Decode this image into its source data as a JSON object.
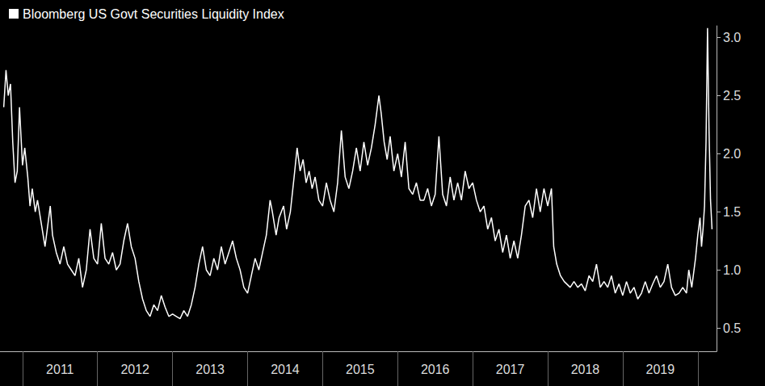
{
  "chart_data": {
    "type": "line",
    "legend": "top-left",
    "grid": false,
    "xlim": [
      2010.7,
      2020.25
    ],
    "xticks": [
      {
        "value": 2011.5,
        "label": "2011"
      },
      {
        "value": 2012.5,
        "label": "2012"
      },
      {
        "value": 2013.5,
        "label": "2013"
      },
      {
        "value": 2014.5,
        "label": "2014"
      },
      {
        "value": 2015.5,
        "label": "2015"
      },
      {
        "value": 2016.5,
        "label": "2016"
      },
      {
        "value": 2017.5,
        "label": "2017"
      },
      {
        "value": 2018.5,
        "label": "2018"
      },
      {
        "value": 2019.5,
        "label": "2019"
      }
    ],
    "ylim": [
      0.3,
      3.1
    ],
    "yticks": [
      0.5,
      {
        "value": 1.0,
        "label": "1.0"
      },
      1.5,
      {
        "value": 2.0,
        "label": "2.0"
      },
      2.5,
      {
        "value": 3.0,
        "label": "3.0"
      }
    ],
    "series": [
      {
        "name": "Bloomberg US Govt Securities Liquidity Index",
        "color": "#ffffff",
        "x": [
          2010.75,
          2010.78,
          2010.81,
          2010.84,
          2010.87,
          2010.9,
          2010.93,
          2010.96,
          2011.0,
          2011.03,
          2011.07,
          2011.1,
          2011.13,
          2011.17,
          2011.2,
          2011.25,
          2011.3,
          2011.33,
          2011.37,
          2011.4,
          2011.45,
          2011.5,
          2011.55,
          2011.6,
          2011.65,
          2011.7,
          2011.75,
          2011.8,
          2011.85,
          2011.9,
          2011.95,
          2012.0,
          2012.05,
          2012.1,
          2012.15,
          2012.2,
          2012.25,
          2012.3,
          2012.35,
          2012.4,
          2012.45,
          2012.5,
          2012.55,
          2012.6,
          2012.65,
          2012.7,
          2012.75,
          2012.8,
          2012.85,
          2012.9,
          2012.95,
          2013.0,
          2013.05,
          2013.1,
          2013.15,
          2013.2,
          2013.25,
          2013.3,
          2013.35,
          2013.4,
          2013.45,
          2013.5,
          2013.55,
          2013.6,
          2013.65,
          2013.7,
          2013.75,
          2013.8,
          2013.85,
          2013.9,
          2013.95,
          2014.0,
          2014.05,
          2014.1,
          2014.15,
          2014.2,
          2014.25,
          2014.3,
          2014.33,
          2014.38,
          2014.42,
          2014.48,
          2014.52,
          2014.57,
          2014.62,
          2014.66,
          2014.7,
          2014.74,
          2014.78,
          2014.82,
          2014.86,
          2014.9,
          2014.95,
          2015.0,
          2015.05,
          2015.1,
          2015.15,
          2015.2,
          2015.25,
          2015.3,
          2015.35,
          2015.4,
          2015.45,
          2015.5,
          2015.55,
          2015.6,
          2015.65,
          2015.7,
          2015.75,
          2015.78,
          2015.82,
          2015.86,
          2015.9,
          2015.95,
          2016.0,
          2016.05,
          2016.1,
          2016.15,
          2016.2,
          2016.25,
          2016.3,
          2016.35,
          2016.4,
          2016.45,
          2016.5,
          2016.55,
          2016.6,
          2016.65,
          2016.7,
          2016.75,
          2016.8,
          2016.85,
          2016.9,
          2016.95,
          2017.0,
          2017.05,
          2017.1,
          2017.15,
          2017.2,
          2017.25,
          2017.3,
          2017.35,
          2017.4,
          2017.45,
          2017.5,
          2017.55,
          2017.6,
          2017.65,
          2017.7,
          2017.75,
          2017.8,
          2017.85,
          2017.9,
          2017.95,
          2018.0,
          2018.05,
          2018.08,
          2018.12,
          2018.17,
          2018.22,
          2018.3,
          2018.35,
          2018.4,
          2018.45,
          2018.5,
          2018.55,
          2018.6,
          2018.65,
          2018.7,
          2018.75,
          2018.8,
          2018.85,
          2018.9,
          2018.95,
          2019.0,
          2019.05,
          2019.1,
          2019.15,
          2019.2,
          2019.25,
          2019.3,
          2019.35,
          2019.4,
          2019.45,
          2019.5,
          2019.55,
          2019.6,
          2019.65,
          2019.7,
          2019.75,
          2019.8,
          2019.85,
          2019.88,
          2019.92,
          2019.97,
          2020.0,
          2020.03,
          2020.05,
          2020.07,
          2020.09,
          2020.11,
          2020.13,
          2020.15,
          2020.17,
          2020.19
        ],
        "values": [
          2.4,
          2.72,
          2.5,
          2.6,
          2.1,
          1.75,
          1.85,
          2.4,
          1.9,
          2.05,
          1.8,
          1.55,
          1.7,
          1.5,
          1.6,
          1.4,
          1.2,
          1.35,
          1.55,
          1.3,
          1.15,
          1.05,
          1.2,
          1.05,
          1.0,
          0.95,
          1.1,
          0.85,
          1.0,
          1.35,
          1.1,
          1.05,
          1.4,
          1.1,
          1.05,
          1.15,
          1.0,
          1.05,
          1.25,
          1.4,
          1.2,
          1.1,
          0.9,
          0.75,
          0.65,
          0.6,
          0.7,
          0.65,
          0.78,
          0.68,
          0.6,
          0.62,
          0.6,
          0.58,
          0.65,
          0.6,
          0.7,
          0.85,
          1.05,
          1.2,
          1.0,
          0.95,
          1.1,
          1.0,
          1.2,
          1.05,
          1.15,
          1.25,
          1.1,
          1.0,
          0.85,
          0.8,
          0.95,
          1.1,
          1.0,
          1.15,
          1.3,
          1.6,
          1.5,
          1.3,
          1.45,
          1.55,
          1.35,
          1.5,
          1.8,
          2.05,
          1.85,
          1.95,
          1.75,
          1.85,
          1.7,
          1.8,
          1.6,
          1.55,
          1.75,
          1.6,
          1.5,
          1.75,
          2.2,
          1.8,
          1.7,
          1.85,
          2.05,
          1.85,
          2.1,
          1.9,
          2.05,
          2.25,
          2.5,
          2.35,
          2.1,
          1.95,
          2.15,
          1.85,
          2.0,
          1.8,
          2.1,
          1.7,
          1.65,
          1.75,
          1.6,
          1.6,
          1.7,
          1.55,
          1.65,
          2.15,
          1.65,
          1.55,
          1.8,
          1.6,
          1.75,
          1.6,
          1.85,
          1.7,
          1.75,
          1.6,
          1.5,
          1.55,
          1.35,
          1.45,
          1.25,
          1.35,
          1.15,
          1.3,
          1.1,
          1.25,
          1.1,
          1.3,
          1.55,
          1.6,
          1.45,
          1.7,
          1.5,
          1.7,
          1.55,
          1.7,
          1.2,
          1.05,
          0.95,
          0.9,
          0.85,
          0.9,
          0.85,
          0.88,
          0.82,
          0.95,
          0.9,
          1.05,
          0.85,
          0.9,
          0.85,
          0.95,
          0.8,
          0.88,
          0.78,
          0.9,
          0.8,
          0.85,
          0.75,
          0.8,
          0.9,
          0.8,
          0.88,
          0.95,
          0.85,
          0.9,
          1.05,
          0.85,
          0.78,
          0.8,
          0.85,
          0.8,
          1.0,
          0.85,
          1.1,
          1.3,
          1.45,
          1.2,
          1.35,
          1.55,
          2.1,
          3.08,
          2.2,
          1.6,
          1.35
        ]
      }
    ]
  }
}
